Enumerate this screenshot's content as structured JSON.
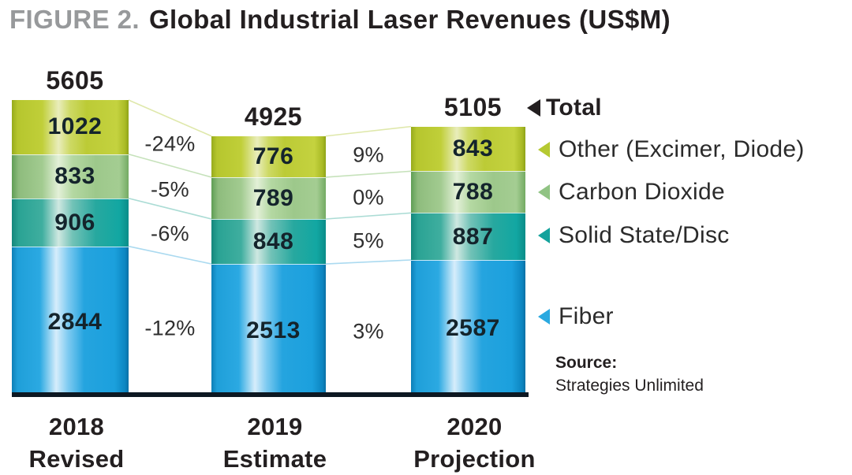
{
  "title": {
    "figure_label": "FIGURE 2.",
    "text": "Global Industrial Laser Revenues (US$M)"
  },
  "source": {
    "label": "Source:",
    "text": "Strategies Unlimited"
  },
  "legend": {
    "items": [
      {
        "label": "Total",
        "color": "#231f20",
        "emphasis": true
      },
      {
        "label": "Other (Excimer, Diode)",
        "color": "#b5c932"
      },
      {
        "label": "Carbon Dioxide",
        "color": "#90c383"
      },
      {
        "label": "Solid State/Disc",
        "color": "#14a29c"
      },
      {
        "label": "Fiber",
        "color": "#2aa9e0"
      }
    ]
  },
  "chart_data": {
    "type": "bar",
    "stacked": true,
    "title": "Global Industrial Laser Revenues (US$M)",
    "unit": "US$M",
    "categories": [
      "2018 Revised",
      "2019 Estimate",
      "2020 Projection"
    ],
    "category_lines": [
      [
        "2018",
        "Revised"
      ],
      [
        "2019",
        "Estimate"
      ],
      [
        "2020",
        "Projection"
      ]
    ],
    "totals": [
      5605,
      4925,
      5105
    ],
    "series_order": "top-to-bottom",
    "series": [
      {
        "key": "other",
        "name": "Other (Excimer, Diode)",
        "color": "#bdce39",
        "values": [
          1022,
          776,
          843
        ]
      },
      {
        "key": "co2",
        "name": "Carbon Dioxide",
        "color": "#a3cd92",
        "values": [
          833,
          789,
          788
        ]
      },
      {
        "key": "ssd",
        "name": "Solid State/Disc",
        "color": "#2fae9f",
        "values": [
          906,
          848,
          887
        ]
      },
      {
        "key": "fiber",
        "name": "Fiber",
        "color": "#22a7e0",
        "values": [
          2844,
          2513,
          2587
        ]
      }
    ],
    "percent_changes": [
      {
        "from": "2018 Revised",
        "to": "2019 Estimate",
        "values": [
          "-24%",
          "-5%",
          "-6%",
          "-12%"
        ]
      },
      {
        "from": "2019 Estimate",
        "to": "2020 Projection",
        "values": [
          "9%",
          "0%",
          "5%",
          "3%"
        ]
      }
    ],
    "connector_line_colors": [
      "#dfe8ab",
      "#c6e2bb",
      "#abdcd5",
      "#abdaf0"
    ],
    "legend_position": "right",
    "source": "Strategies Unlimited"
  }
}
